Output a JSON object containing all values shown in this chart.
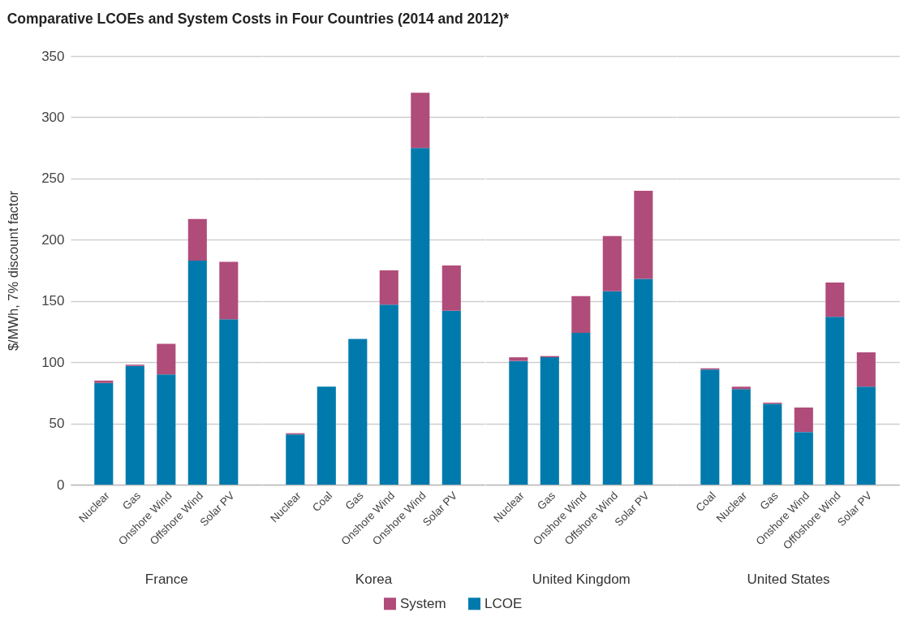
{
  "chart_data": [
    {
      "type": "bar",
      "title": "Comparative LCOEs and System Costs in Four Countries (2014 and 2012)*",
      "ylabel": "$/MWh, 7% discount factor",
      "xlabel": "France",
      "categories": [
        "Nuclear",
        "Gas",
        "Onshore Wind",
        "Offshore Wind",
        "Solar PV"
      ],
      "series": [
        {
          "name": "LCOE",
          "color": "#007aad",
          "values": [
            83,
            97,
            90,
            183,
            135
          ]
        },
        {
          "name": "System",
          "color": "#b04c7a",
          "values": [
            2,
            1,
            25,
            34,
            47
          ]
        }
      ],
      "stacked": true,
      "ylim": [
        0,
        350
      ],
      "yticks": [
        0,
        50,
        100,
        150,
        200,
        250,
        300,
        350
      ],
      "grid": "y",
      "legend": "bottom"
    },
    {
      "type": "bar",
      "xlabel": "Korea",
      "categories": [
        "Nuclear",
        "Coal",
        "Gas",
        "Onshore Wind",
        "Onshore Wind",
        "Solar PV"
      ],
      "series": [
        {
          "name": "LCOE",
          "color": "#007aad",
          "values": [
            41,
            80,
            119,
            147,
            275,
            142
          ]
        },
        {
          "name": "System",
          "color": "#b04c7a",
          "values": [
            1,
            null,
            null,
            28,
            45,
            37
          ]
        }
      ],
      "stacked": true,
      "ylim": [
        0,
        350
      ],
      "yticks": [
        0,
        50,
        100,
        150,
        200,
        250,
        300,
        350
      ],
      "grid": "y",
      "tick_labels": "x"
    },
    {
      "type": "bar",
      "xlabel": "United Kingdom",
      "categories": [
        "Nuclear",
        "Gas",
        "Onshore Wind",
        "Offshore Wind",
        "Solar PV"
      ],
      "series": [
        {
          "name": "LCOE",
          "color": "#007aad",
          "values": [
            101,
            104,
            124,
            158,
            168
          ]
        },
        {
          "name": "System",
          "color": "#b04c7a",
          "values": [
            3,
            1,
            30,
            45,
            72
          ]
        }
      ],
      "stacked": true,
      "ylim": [
        0,
        350
      ],
      "yticks": [
        0,
        50,
        100,
        150,
        200,
        250,
        300,
        350
      ],
      "grid": "y",
      "tick_labels": "x"
    },
    {
      "type": "bar",
      "xlabel": "United States",
      "categories": [
        "Coal",
        "Nuclear",
        "Gas",
        "Onshore Wind",
        "Off0shore Wind",
        "Solar PV"
      ],
      "series": [
        {
          "name": "LCOE",
          "color": "#007aad",
          "values": [
            94,
            78,
            66,
            43,
            137,
            80
          ]
        },
        {
          "name": "System",
          "color": "#b04c7a",
          "values": [
            1,
            2,
            1,
            20,
            28,
            28
          ]
        }
      ],
      "stacked": true,
      "ylim": [
        0,
        350
      ],
      "yticks": [
        0,
        50,
        100,
        150,
        200,
        250,
        300,
        350
      ],
      "grid": "y",
      "tick_labels": "x"
    }
  ]
}
